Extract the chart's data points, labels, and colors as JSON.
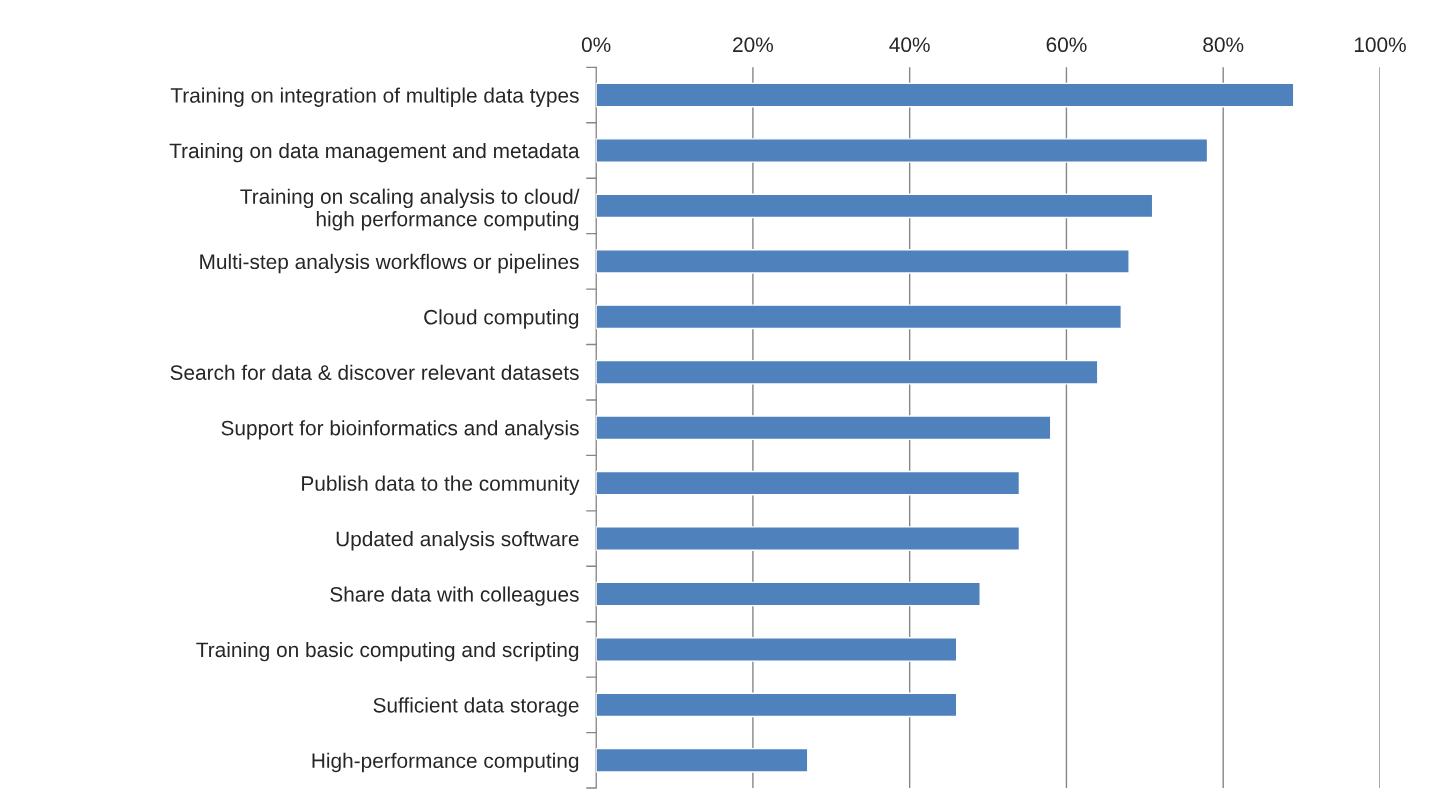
{
  "chart_data": {
    "type": "bar",
    "orientation": "horizontal",
    "categories": [
      "Training on integration of multiple data types",
      "Training on data management and metadata",
      "Training on scaling analysis to cloud/\nhigh performance computing",
      "Multi-step analysis workflows or pipelines",
      "Cloud computing",
      "Search for data & discover relevant datasets",
      "Support for bioinformatics and analysis",
      "Publish data to the community",
      "Updated analysis software",
      "Share data with colleagues",
      "Training on basic computing and scripting",
      "Sufficient data storage",
      "High-performance computing"
    ],
    "values": [
      89,
      78,
      71,
      68,
      67,
      64,
      58,
      54,
      54,
      49,
      46,
      46,
      27
    ],
    "color": "#4f81bd",
    "xlim": [
      0,
      100
    ],
    "xticks": [
      {
        "value": 0,
        "label": "0%"
      },
      {
        "value": 20,
        "label": "20%"
      },
      {
        "value": 40,
        "label": "40%"
      },
      {
        "value": 60,
        "label": "60%"
      },
      {
        "value": 80,
        "label": "80%"
      },
      {
        "value": 100,
        "label": "100%"
      }
    ],
    "grid": "x"
  }
}
